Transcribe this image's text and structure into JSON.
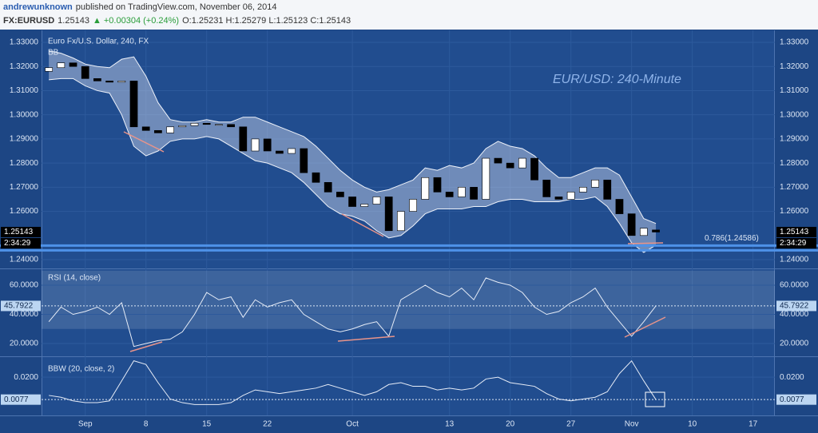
{
  "header": {
    "author": "andrewunknown",
    "published": "published on TradingView.com, November 06, 2014",
    "symbol": "FX:EURUSD",
    "price": "1.25143",
    "change": "▲ +0.00304 (+0.24%)",
    "ohlc": "O:1.25231 H:1.25279 L:1.25123 C:1.25143"
  },
  "chart_data": [
    {
      "type": "candlestick",
      "title": "Euro Fx/U.S. Dollar, 240, FX",
      "indicator": "BB",
      "annotation": "EUR/USD: 240-Minute",
      "x": [
        -3,
        -2,
        -1,
        0,
        1,
        2,
        3,
        4,
        5,
        6,
        7,
        8,
        9,
        10,
        11,
        12,
        13,
        14,
        15,
        16,
        17,
        18,
        19,
        20,
        21,
        22,
        23,
        24,
        25,
        26,
        27,
        28,
        29,
        30,
        31,
        32,
        33,
        34,
        35,
        36,
        37,
        38,
        39,
        40,
        41,
        42,
        43,
        44,
        45,
        46,
        47
      ],
      "open": [
        1.318,
        1.3195,
        1.3215,
        1.32,
        1.315,
        1.314,
        1.3135,
        1.314,
        1.295,
        1.2935,
        1.2925,
        1.295,
        1.2955,
        1.2965,
        1.296,
        1.296,
        1.295,
        1.285,
        1.29,
        1.285,
        1.284,
        1.286,
        1.276,
        1.272,
        1.268,
        1.266,
        1.262,
        1.263,
        1.266,
        1.252,
        1.26,
        1.265,
        1.274,
        1.268,
        1.266,
        1.27,
        1.265,
        1.282,
        1.28,
        1.278,
        1.282,
        1.273,
        1.266,
        1.265,
        1.268,
        1.27,
        1.273,
        1.265,
        1.259,
        1.25,
        1.25231
      ],
      "close": [
        1.3195,
        1.3215,
        1.32,
        1.315,
        1.314,
        1.3135,
        1.314,
        1.295,
        1.2935,
        1.2925,
        1.295,
        1.2955,
        1.2965,
        1.296,
        1.296,
        1.295,
        1.285,
        1.29,
        1.285,
        1.284,
        1.286,
        1.276,
        1.272,
        1.268,
        1.266,
        1.262,
        1.263,
        1.266,
        1.252,
        1.26,
        1.265,
        1.274,
        1.268,
        1.266,
        1.27,
        1.265,
        1.282,
        1.28,
        1.278,
        1.282,
        1.273,
        1.266,
        1.265,
        1.268,
        1.27,
        1.273,
        1.265,
        1.259,
        1.25,
        1.253,
        1.25143
      ],
      "bb_upper": [
        1.3265,
        1.3255,
        1.3235,
        1.321,
        1.32,
        1.3195,
        1.323,
        1.324,
        1.316,
        1.305,
        1.298,
        1.297,
        1.297,
        1.298,
        1.297,
        1.297,
        1.299,
        1.299,
        1.297,
        1.295,
        1.293,
        1.291,
        1.287,
        1.282,
        1.277,
        1.273,
        1.27,
        1.268,
        1.269,
        1.271,
        1.273,
        1.278,
        1.277,
        1.279,
        1.278,
        1.28,
        1.286,
        1.289,
        1.287,
        1.286,
        1.283,
        1.278,
        1.274,
        1.274,
        1.276,
        1.278,
        1.278,
        1.275,
        1.266,
        1.257,
        1.255
      ],
      "bb_lower": [
        1.3145,
        1.315,
        1.315,
        1.312,
        1.31,
        1.309,
        1.3,
        1.287,
        1.283,
        1.285,
        1.289,
        1.29,
        1.29,
        1.291,
        1.29,
        1.287,
        1.284,
        1.281,
        1.28,
        1.278,
        1.276,
        1.272,
        1.267,
        1.262,
        1.259,
        1.258,
        1.256,
        1.252,
        1.249,
        1.25,
        1.254,
        1.259,
        1.261,
        1.261,
        1.261,
        1.262,
        1.262,
        1.264,
        1.265,
        1.265,
        1.264,
        1.264,
        1.264,
        1.265,
        1.265,
        1.266,
        1.262,
        1.255,
        1.247,
        1.243,
        1.246
      ],
      "up_color": "#ffffff",
      "down_color": "#000000",
      "band_color": "#cfd8ee",
      "countdown": "2:34:29",
      "fib_level": {
        "value": 1.24586,
        "label": "0.786(1.24586)"
      },
      "xlim": [
        -3.6,
        56.8
      ],
      "xticks": [
        {
          "value": 0,
          "label": "Sep"
        },
        {
          "value": 5,
          "label": "8"
        },
        {
          "value": 10,
          "label": "15"
        },
        {
          "value": 15,
          "label": "22"
        },
        {
          "value": 22,
          "label": "Oct"
        },
        {
          "value": 30,
          "label": "13"
        },
        {
          "value": 35,
          "label": "20"
        },
        {
          "value": 40,
          "label": "27"
        },
        {
          "value": 45,
          "label": "Nov"
        },
        {
          "value": 50,
          "label": "10"
        },
        {
          "value": 55,
          "label": "17"
        }
      ],
      "ylim": [
        1.2367,
        1.3343
      ],
      "yticks": [
        {
          "value": 1.24,
          "label": "1.24000"
        },
        {
          "value": 1.26,
          "label": "1.26000"
        },
        {
          "value": 1.27,
          "label": "1.27000"
        },
        {
          "value": 1.28,
          "label": "1.28000"
        },
        {
          "value": 1.29,
          "label": "1.29000"
        },
        {
          "value": 1.3,
          "label": "1.30000"
        },
        {
          "value": 1.31,
          "label": "1.31000"
        },
        {
          "value": 1.32,
          "label": "1.32000"
        },
        {
          "value": 1.33,
          "label": "1.33000"
        }
      ],
      "grid": true
    },
    {
      "type": "line",
      "title": "RSI (14, close)",
      "color": "#e6ecf7",
      "x": [
        -3,
        -2,
        -1,
        0,
        1,
        2,
        3,
        4,
        5,
        6,
        7,
        8,
        9,
        10,
        11,
        12,
        13,
        14,
        15,
        16,
        17,
        18,
        19,
        20,
        21,
        22,
        23,
        24,
        25,
        26,
        27,
        28,
        29,
        30,
        31,
        32,
        33,
        34,
        35,
        36,
        37,
        38,
        39,
        40,
        41,
        42,
        43,
        44,
        45,
        46,
        47
      ],
      "values": [
        35,
        45,
        40,
        42,
        45,
        40,
        48,
        18,
        20,
        22,
        23,
        28,
        40,
        55,
        50,
        52,
        38,
        50,
        45,
        48,
        50,
        40,
        35,
        30,
        28,
        30,
        33,
        35,
        25,
        50,
        55,
        60,
        55,
        52,
        58,
        50,
        65,
        62,
        60,
        55,
        45,
        40,
        42,
        48,
        52,
        58,
        45,
        35,
        25,
        35,
        45.7922
      ],
      "band": [
        30,
        70
      ],
      "ylim": [
        11.8,
        70.4
      ],
      "yticks": [
        {
          "value": 20,
          "label": "20.0000"
        },
        {
          "value": 40,
          "label": "40.0000"
        },
        {
          "value": 60,
          "label": "60.0000"
        }
      ],
      "grid": true
    },
    {
      "type": "line",
      "title": "BBW (20, close, 2)",
      "color": "#e6ecf7",
      "x": [
        -3,
        -2,
        -1,
        0,
        1,
        2,
        3,
        4,
        5,
        6,
        7,
        8,
        9,
        10,
        11,
        12,
        13,
        14,
        15,
        16,
        17,
        18,
        19,
        20,
        21,
        22,
        23,
        24,
        25,
        26,
        27,
        28,
        29,
        30,
        31,
        32,
        33,
        34,
        35,
        36,
        37,
        38,
        39,
        40,
        41,
        42,
        43,
        44,
        45,
        46,
        47
      ],
      "values": [
        0.01,
        0.009,
        0.007,
        0.006,
        0.006,
        0.007,
        0.018,
        0.029,
        0.027,
        0.017,
        0.008,
        0.006,
        0.005,
        0.005,
        0.005,
        0.006,
        0.01,
        0.013,
        0.012,
        0.011,
        0.012,
        0.013,
        0.014,
        0.016,
        0.014,
        0.012,
        0.01,
        0.012,
        0.016,
        0.017,
        0.015,
        0.015,
        0.013,
        0.014,
        0.013,
        0.014,
        0.019,
        0.02,
        0.017,
        0.016,
        0.015,
        0.011,
        0.008,
        0.007,
        0.008,
        0.009,
        0.012,
        0.022,
        0.029,
        0.018,
        0.0077
      ],
      "ylim": [
        -0.001,
        0.0306
      ],
      "yticks": [
        {
          "value": 0.02,
          "label": "0.0200"
        }
      ],
      "grid": true
    }
  ]
}
